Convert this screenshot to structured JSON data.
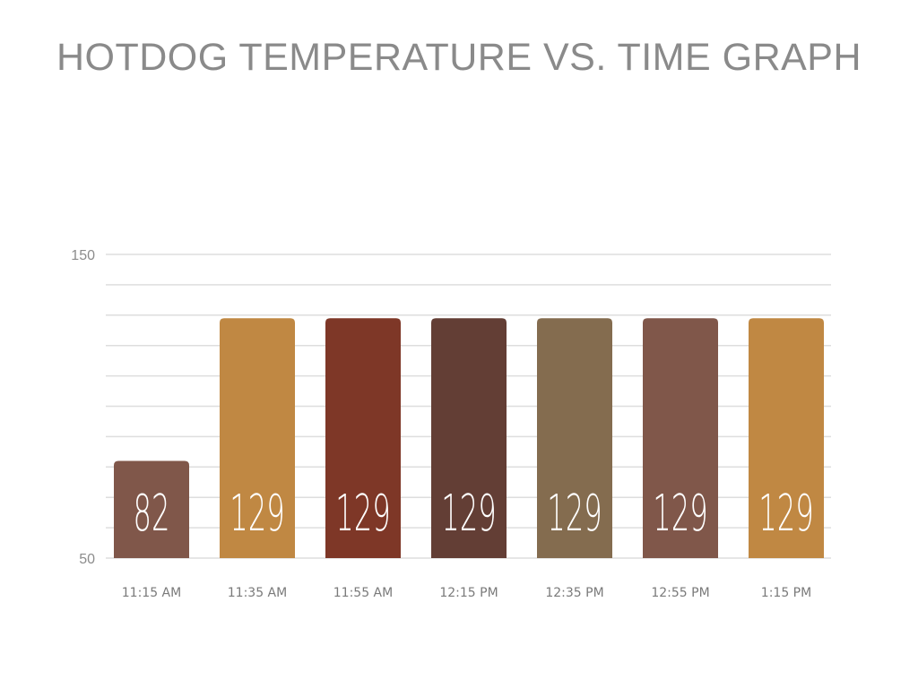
{
  "chart_data": {
    "type": "bar",
    "title": "HOTDOG TEMPERATURE VS. TIME GRAPH",
    "xlabel": "",
    "ylabel": "",
    "ylim": [
      50,
      150
    ],
    "yticks": [
      "150",
      "50"
    ],
    "grid": true,
    "categories": [
      "11:15 AM",
      "11:35 AM",
      "11:55 AM",
      "12:15 PM",
      "12:35 PM",
      "12:55 PM",
      "1:15 PM"
    ],
    "values": [
      82,
      129,
      129,
      129,
      129,
      129,
      129
    ],
    "data_labels": [
      "82",
      "129",
      "129",
      "129",
      "129",
      "129",
      "129"
    ],
    "colors": [
      "#80574a",
      "#c08843",
      "#7e3727",
      "#633e35",
      "#846c4f",
      "#80574a",
      "#c08843"
    ]
  }
}
